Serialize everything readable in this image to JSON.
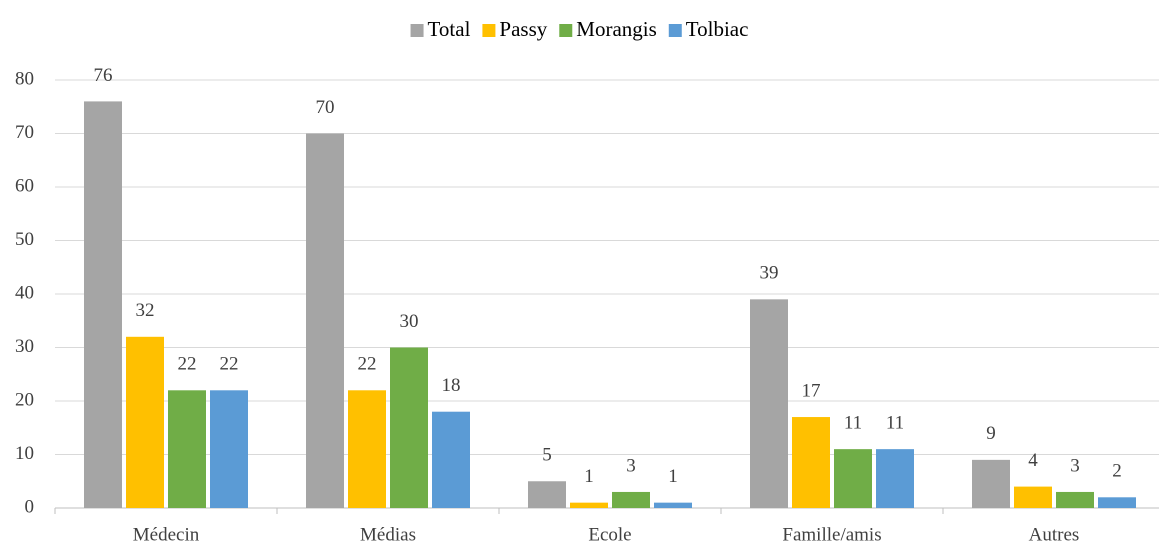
{
  "chart_data": {
    "type": "bar",
    "categories": [
      "Médecin",
      "Médias",
      "Ecole",
      "Famille/amis",
      "Autres"
    ],
    "series": [
      {
        "name": "Total",
        "color": "#a5a5a5",
        "values": [
          76,
          70,
          5,
          39,
          9
        ]
      },
      {
        "name": "Passy",
        "color": "#ffc000",
        "values": [
          32,
          22,
          1,
          17,
          4
        ]
      },
      {
        "name": "Morangis",
        "color": "#70ad47",
        "values": [
          22,
          30,
          3,
          11,
          3
        ]
      },
      {
        "name": "Tolbiac",
        "color": "#5b9bd5",
        "values": [
          22,
          18,
          1,
          11,
          2
        ]
      }
    ],
    "ylim": [
      0,
      80
    ],
    "yticks": [
      0,
      10,
      20,
      30,
      40,
      50,
      60,
      70,
      80
    ],
    "grid": true,
    "legend": "top"
  }
}
